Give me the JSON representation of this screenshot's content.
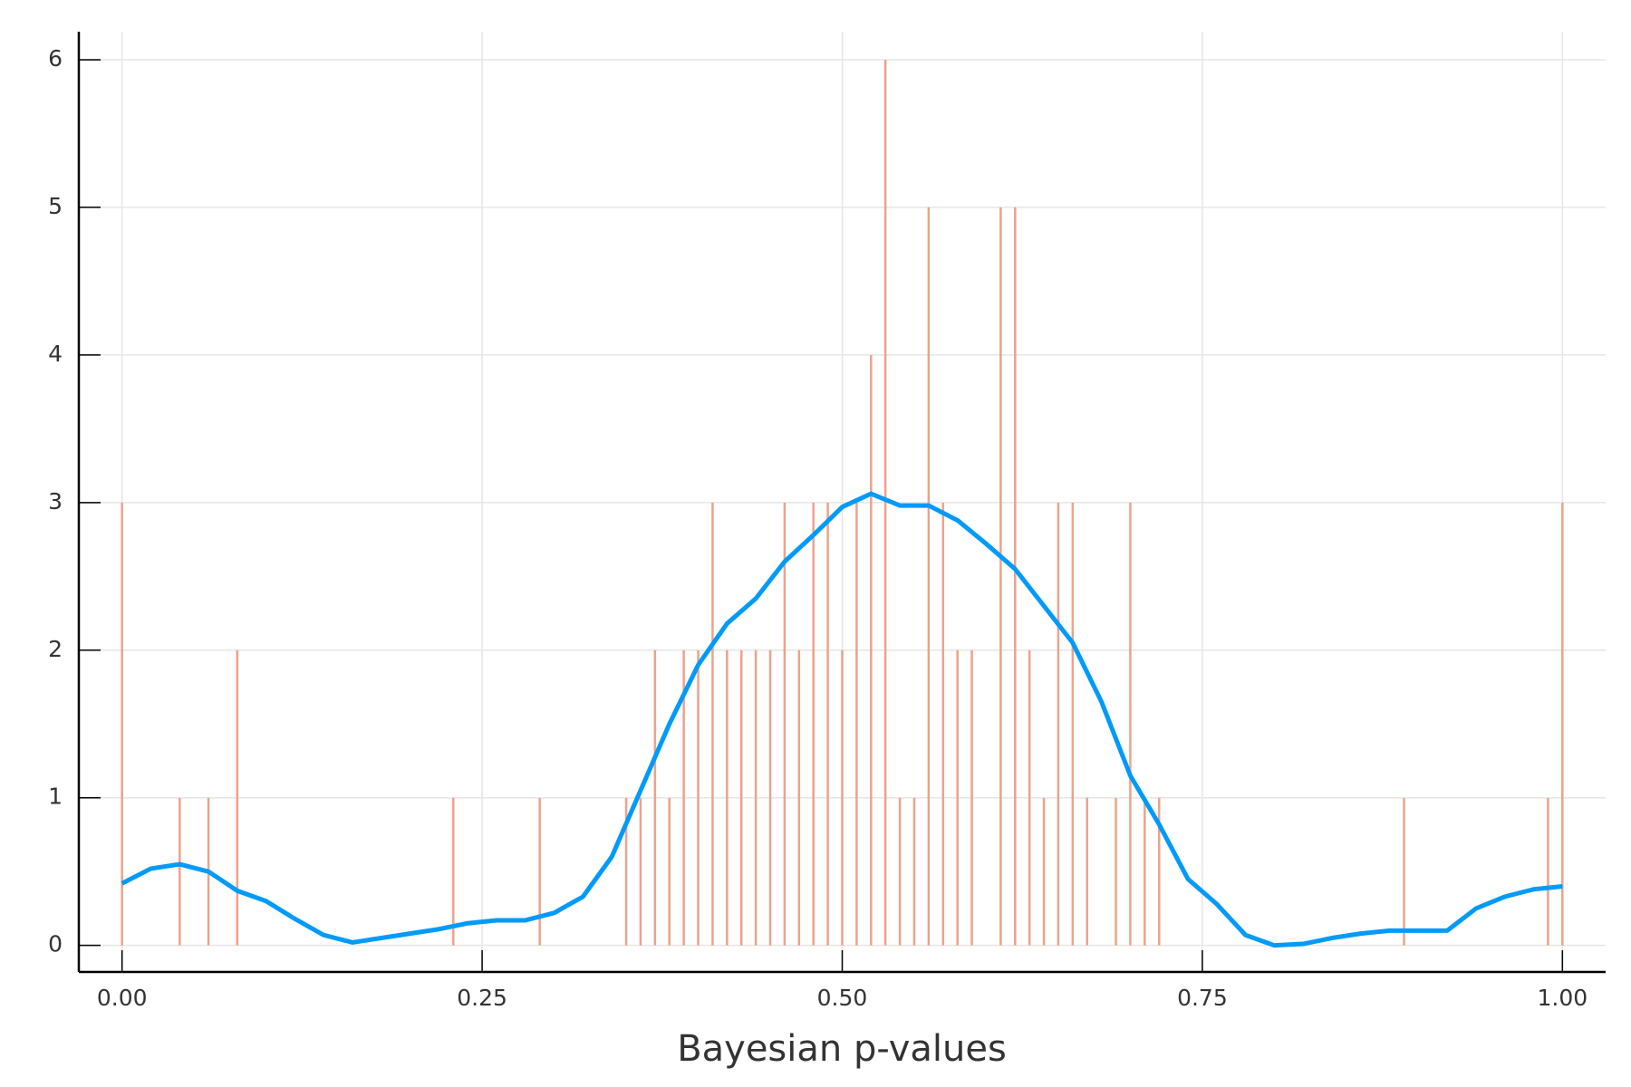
{
  "chart_data": {
    "type": "sticks",
    "xlabel": "Bayesian p-values",
    "xlim": [
      -0.03,
      1.03
    ],
    "ylim": [
      -0.18,
      6.19
    ],
    "xticks": [
      {
        "value": 0,
        "label": "0.00"
      },
      {
        "value": 0.25,
        "label": "0.25"
      },
      {
        "value": 0.5,
        "label": "0.50"
      },
      {
        "value": 0.75,
        "label": "0.75"
      },
      {
        "value": 1,
        "label": "1.00"
      }
    ],
    "yticks": [
      0,
      1,
      2,
      3,
      4,
      5,
      6
    ],
    "grid": true,
    "series": [
      {
        "type": "sticks",
        "color": "#eba38b",
        "x": [
          0.0,
          0.04,
          0.06,
          0.08,
          0.23,
          0.29,
          0.35,
          0.36,
          0.37,
          0.38,
          0.39,
          0.4,
          0.41,
          0.42,
          0.43,
          0.44,
          0.45,
          0.46,
          0.47,
          0.48,
          0.49,
          0.5,
          0.51,
          0.52,
          0.53,
          0.54,
          0.55,
          0.56,
          0.57,
          0.58,
          0.59,
          0.61,
          0.62,
          0.63,
          0.64,
          0.65,
          0.66,
          0.67,
          0.69,
          0.7,
          0.71,
          0.72,
          0.89,
          0.99,
          1.0
        ],
        "values": [
          3,
          1,
          1,
          2,
          1,
          1,
          1,
          1,
          2,
          1,
          2,
          2,
          3,
          2,
          2,
          2,
          2,
          3,
          2,
          3,
          3,
          2,
          3,
          4,
          6,
          1,
          1,
          5,
          3,
          2,
          2,
          5,
          5,
          2,
          1,
          3,
          3,
          1,
          1,
          3,
          1,
          1,
          1,
          1,
          3
        ]
      },
      {
        "type": "line",
        "color": "#009af9",
        "x": [
          0,
          0.02,
          0.04,
          0.06,
          0.08,
          0.1,
          0.12,
          0.14,
          0.16,
          0.18,
          0.2,
          0.22,
          0.24,
          0.26,
          0.28,
          0.3,
          0.32,
          0.34,
          0.36,
          0.38,
          0.4,
          0.42,
          0.44,
          0.46,
          0.48,
          0.5,
          0.52,
          0.54,
          0.56,
          0.58,
          0.6,
          0.62,
          0.64,
          0.66,
          0.68,
          0.7,
          0.72,
          0.74,
          0.76,
          0.78,
          0.8,
          0.82,
          0.84,
          0.86,
          0.88,
          0.9,
          0.92,
          0.94,
          0.96,
          0.98,
          1.0
        ],
        "values": [
          0.42,
          0.52,
          0.55,
          0.5,
          0.37,
          0.3,
          0.18,
          0.07,
          0.02,
          0.05,
          0.08,
          0.11,
          0.15,
          0.17,
          0.17,
          0.22,
          0.33,
          0.6,
          1.05,
          1.5,
          1.9,
          2.18,
          2.35,
          2.6,
          2.78,
          2.97,
          3.06,
          2.98,
          2.98,
          2.88,
          2.72,
          2.55,
          2.3,
          2.05,
          1.65,
          1.15,
          0.82,
          0.45,
          0.28,
          0.07,
          0.0,
          0.01,
          0.05,
          0.08,
          0.1,
          0.1,
          0.1,
          0.25,
          0.33,
          0.38,
          0.4
        ]
      }
    ]
  }
}
